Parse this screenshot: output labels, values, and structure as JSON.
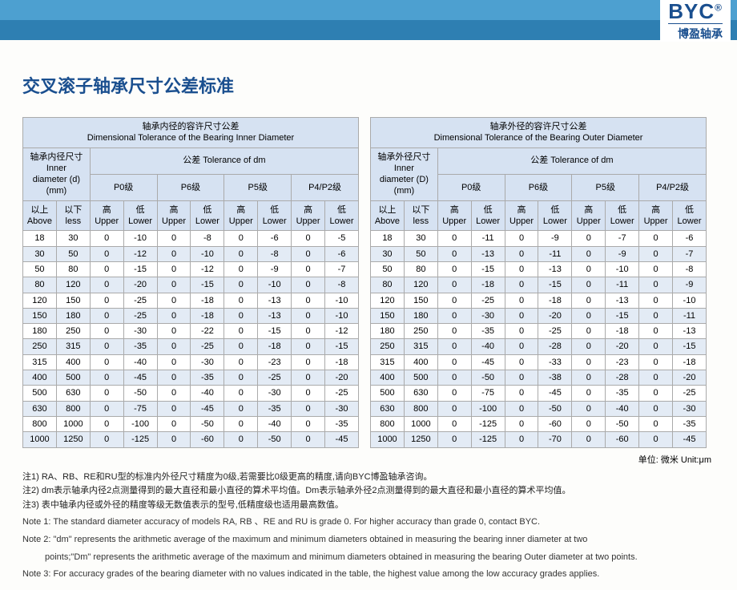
{
  "logo": {
    "brand": "BYC",
    "reg": "®",
    "sub": "博盈轴承"
  },
  "title": "交叉滚子轴承尺寸公差标准",
  "unit_label": "单位: 微米   Unit:μm",
  "left_table": {
    "title_cn": "轴承内径的容许尺寸公差",
    "title_en": "Dimensional Tolerance of the Bearing Inner Diameter",
    "dim_label_cn": "轴承内径尺寸",
    "dim_label_en1": "Inner",
    "dim_label_en2": "diameter (d)",
    "dim_label_en3": "(mm)",
    "tol_label": "公差 Tolerance of dm",
    "grades": [
      "P0级",
      "P6级",
      "P5级",
      "P4/P2级"
    ],
    "above_cn": "以上",
    "above_en": "Above",
    "less_cn": "以下",
    "less_en": "less",
    "upper_cn": "高",
    "upper_en": "Upper",
    "lower_cn": "低",
    "lower_en": "Lower",
    "rows": [
      [
        18,
        30,
        0,
        -10,
        0,
        -8,
        0,
        -6,
        0,
        -5
      ],
      [
        30,
        50,
        0,
        -12,
        0,
        -10,
        0,
        -8,
        0,
        -6
      ],
      [
        50,
        80,
        0,
        -15,
        0,
        -12,
        0,
        -9,
        0,
        -7
      ],
      [
        80,
        120,
        0,
        -20,
        0,
        -15,
        0,
        -10,
        0,
        -8
      ],
      [
        120,
        150,
        0,
        -25,
        0,
        -18,
        0,
        -13,
        0,
        -10
      ],
      [
        150,
        180,
        0,
        -25,
        0,
        -18,
        0,
        -13,
        0,
        -10
      ],
      [
        180,
        250,
        0,
        -30,
        0,
        -22,
        0,
        -15,
        0,
        -12
      ],
      [
        250,
        315,
        0,
        -35,
        0,
        -25,
        0,
        -18,
        0,
        -15
      ],
      [
        315,
        400,
        0,
        -40,
        0,
        -30,
        0,
        -23,
        0,
        -18
      ],
      [
        400,
        500,
        0,
        -45,
        0,
        -35,
        0,
        -25,
        0,
        -20
      ],
      [
        500,
        630,
        0,
        -50,
        0,
        -40,
        0,
        -30,
        0,
        -25
      ],
      [
        630,
        800,
        0,
        -75,
        0,
        -45,
        0,
        -35,
        0,
        -30
      ],
      [
        800,
        1000,
        0,
        -100,
        0,
        -50,
        0,
        -40,
        0,
        -35
      ],
      [
        1000,
        1250,
        0,
        -125,
        0,
        -60,
        0,
        -50,
        0,
        -45
      ]
    ]
  },
  "right_table": {
    "title_cn": "轴承外径的容许尺寸公差",
    "title_en": "Dimensional Tolerance of the Bearing Outer Diameter",
    "dim_label_cn": "轴承外径尺寸",
    "dim_label_en1": "Inner",
    "dim_label_en2": "diameter (D)",
    "dim_label_en3": "(mm)",
    "tol_label": "公差 Tolerance of dm",
    "grades": [
      "P0级",
      "P6级",
      "P5级",
      "P4/P2级"
    ],
    "above_cn": "以上",
    "above_en": "Above",
    "less_cn": "以下",
    "less_en": "less",
    "upper_cn": "高",
    "upper_en": "Upper",
    "lower_cn": "低",
    "lower_en": "Lower",
    "rows": [
      [
        18,
        30,
        0,
        -11,
        0,
        -9,
        0,
        -7,
        0,
        -6
      ],
      [
        30,
        50,
        0,
        -13,
        0,
        -11,
        0,
        -9,
        0,
        -7
      ],
      [
        50,
        80,
        0,
        -15,
        0,
        -13,
        0,
        -10,
        0,
        -8
      ],
      [
        80,
        120,
        0,
        -18,
        0,
        -15,
        0,
        -11,
        0,
        -9
      ],
      [
        120,
        150,
        0,
        -25,
        0,
        -18,
        0,
        -13,
        0,
        -10
      ],
      [
        150,
        180,
        0,
        -30,
        0,
        -20,
        0,
        -15,
        0,
        -11
      ],
      [
        180,
        250,
        0,
        -35,
        0,
        -25,
        0,
        -18,
        0,
        -13
      ],
      [
        250,
        315,
        0,
        -40,
        0,
        -28,
        0,
        -20,
        0,
        -15
      ],
      [
        315,
        400,
        0,
        -45,
        0,
        -33,
        0,
        -23,
        0,
        -18
      ],
      [
        400,
        500,
        0,
        -50,
        0,
        -38,
        0,
        -28,
        0,
        -20
      ],
      [
        500,
        630,
        0,
        -75,
        0,
        -45,
        0,
        -35,
        0,
        -25
      ],
      [
        630,
        800,
        0,
        -100,
        0,
        -50,
        0,
        -40,
        0,
        -30
      ],
      [
        800,
        1000,
        0,
        -125,
        0,
        -60,
        0,
        -50,
        0,
        -35
      ],
      [
        1000,
        1250,
        0,
        -125,
        0,
        -70,
        0,
        -60,
        0,
        -45
      ]
    ]
  },
  "notes_cn": [
    "注1) RA、RB、RE和RU型的标准内外径尺寸精度为0级,若需要比0级更高的精度,请向BYC博盈轴承咨询。",
    "注2) dm表示轴承内径2点测量得到的最大直径和最小直径的算术平均值。Dm表示轴承外径2点测量得到的最大直径和最小直径的算术平均值。",
    "注3) 表中轴承内径或外径的精度等级无数值表示的型号,低精度级也适用最高数值。"
  ],
  "notes_en": [
    "Note 1: The standard diameter accuracy of models RA, RB 、RE and RU is grade 0. For higher accuracy than grade 0, contact BYC.",
    "Note 2: \"dm\" represents the arithmetic average of the maximum and minimum diameters obtained in measuring the bearing inner diameter at two",
    "points;\"Dm\" represents the arithmetic average of the maximum and minimum diameters obtained in measuring the bearing Outer diameter at two points.",
    "Note 3: For accuracy grades of the bearing diameter with no values indicated in the table, the highest value among the low accuracy grades applies."
  ]
}
